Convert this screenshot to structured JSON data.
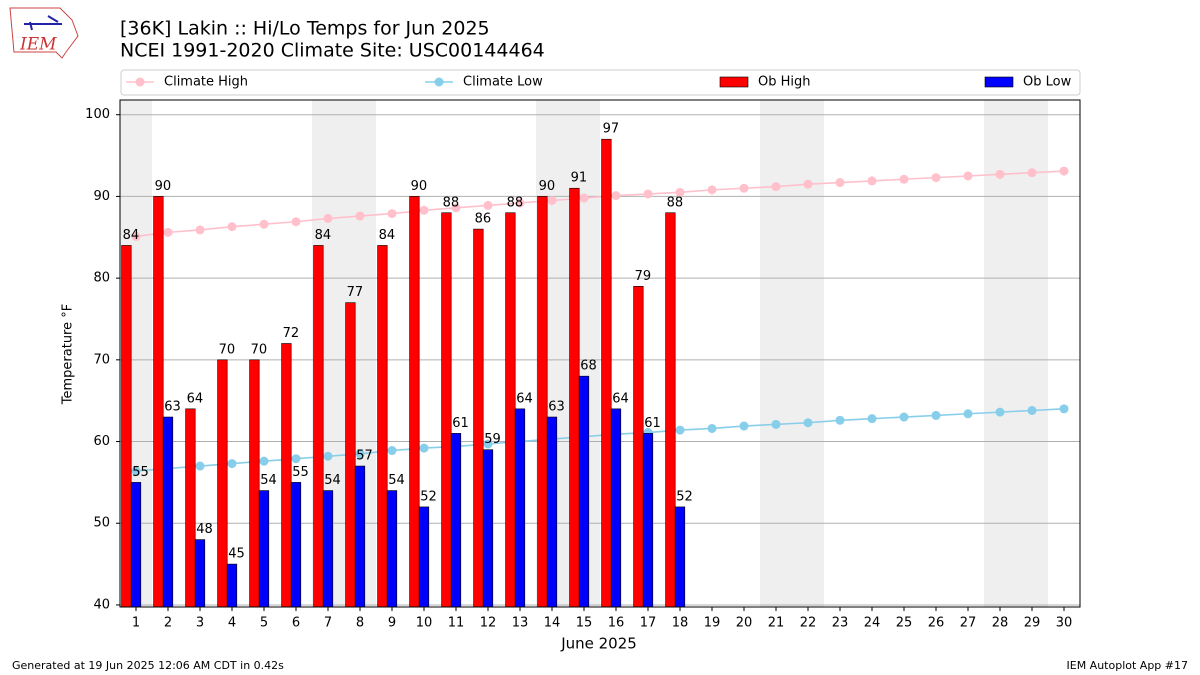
{
  "chart_data": {
    "type": "bar_line",
    "title": "[36K] Lakin :: Hi/Lo Temps for Jun 2025",
    "subtitle": "NCEI 1991-2020 Climate Site: USC00144464",
    "xlabel": "June 2025",
    "ylabel": "Temperature °F",
    "logo_text": "IEM",
    "footer_left": "Generated at 19 Jun 2025 12:06 AM CDT in 0.42s",
    "footer_right": "IEM Autoplot App #17",
    "x": [
      1,
      2,
      3,
      4,
      5,
      6,
      7,
      8,
      9,
      10,
      11,
      12,
      13,
      14,
      15,
      16,
      17,
      18,
      19,
      20,
      21,
      22,
      23,
      24,
      25,
      26,
      27,
      28,
      29,
      30
    ],
    "xlim": [
      0.5,
      30.5
    ],
    "ylim": [
      39.75,
      101.8
    ],
    "yticks": [
      40,
      50,
      60,
      70,
      80,
      90,
      100
    ],
    "grid": true,
    "shaded_days": [
      1,
      7,
      8,
      14,
      15,
      21,
      22,
      28,
      29
    ],
    "series": [
      {
        "name": "Climate High",
        "style": "line",
        "color": "#ffc0cb",
        "values": [
          85.1,
          85.6,
          85.9,
          86.3,
          86.6,
          86.9,
          87.3,
          87.6,
          87.9,
          88.3,
          88.6,
          88.9,
          89.2,
          89.5,
          89.8,
          90.1,
          90.3,
          90.5,
          90.8,
          91.0,
          91.2,
          91.5,
          91.7,
          91.9,
          92.1,
          92.3,
          92.5,
          92.7,
          92.9,
          93.1
        ]
      },
      {
        "name": "Climate Low",
        "style": "line",
        "color": "#87ceeb",
        "values": [
          56.4,
          56.7,
          57.0,
          57.3,
          57.6,
          57.9,
          58.2,
          58.5,
          58.9,
          59.2,
          59.4,
          59.7,
          60.0,
          60.3,
          60.6,
          60.9,
          61.1,
          61.4,
          61.6,
          61.9,
          62.1,
          62.3,
          62.6,
          62.8,
          63.0,
          63.2,
          63.4,
          63.6,
          63.8,
          64.0
        ]
      },
      {
        "name": "Ob High",
        "style": "bar",
        "color": "#ff0000",
        "values": [
          84,
          90,
          64,
          70,
          70,
          72,
          84,
          77,
          84,
          90,
          88,
          86,
          88,
          90,
          91,
          97,
          79,
          88,
          null,
          null,
          null,
          null,
          null,
          null,
          null,
          null,
          null,
          null,
          null,
          null
        ]
      },
      {
        "name": "Ob Low",
        "style": "bar",
        "color": "#0000ff",
        "values": [
          55,
          63,
          48,
          45,
          54,
          55,
          54,
          57,
          54,
          52,
          61,
          59,
          64,
          63,
          68,
          64,
          61,
          52,
          null,
          null,
          null,
          null,
          null,
          null,
          null,
          null,
          null,
          null,
          null,
          null
        ]
      }
    ]
  }
}
